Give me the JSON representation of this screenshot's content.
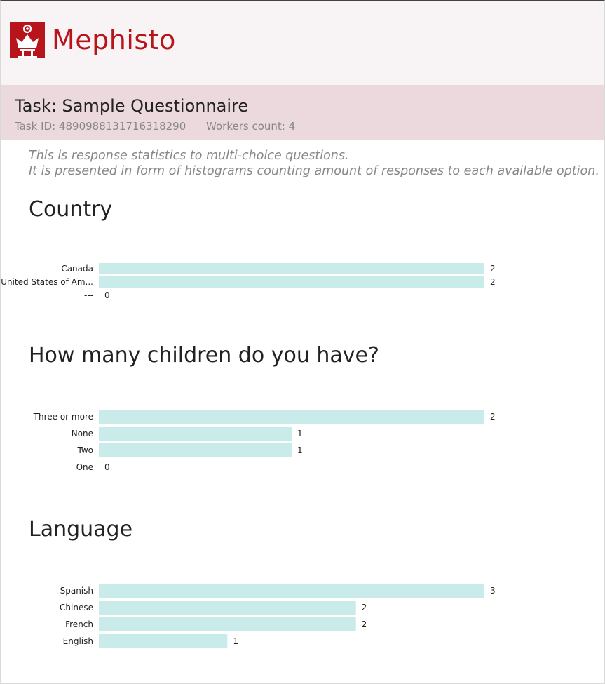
{
  "app": {
    "brand": "Mephisto",
    "brand_color": "#b8141c"
  },
  "task": {
    "title": "Task: Sample Questionnaire",
    "id_text": "Task ID: 4890988131716318290",
    "workers_text": "Workers count: 4"
  },
  "intro": {
    "line1": "This is response statistics to multi-choice questions.",
    "line2": "It is presented in form of histograms counting amount of responses to each available option."
  },
  "chart_data": [
    {
      "type": "bar",
      "orientation": "horizontal",
      "title": "Country",
      "categories": [
        "Canada",
        "United States of Am...",
        "---"
      ],
      "values": [
        2,
        2,
        0
      ]
    },
    {
      "type": "bar",
      "orientation": "horizontal",
      "title": "How many children do you have?",
      "categories": [
        "Three or more",
        "None",
        "Two",
        "One"
      ],
      "values": [
        2,
        1,
        1,
        0
      ]
    },
    {
      "type": "bar",
      "orientation": "horizontal",
      "title": "Language",
      "categories": [
        "Spanish",
        "Chinese",
        "French",
        "English"
      ],
      "values": [
        3,
        2,
        2,
        1
      ]
    }
  ]
}
